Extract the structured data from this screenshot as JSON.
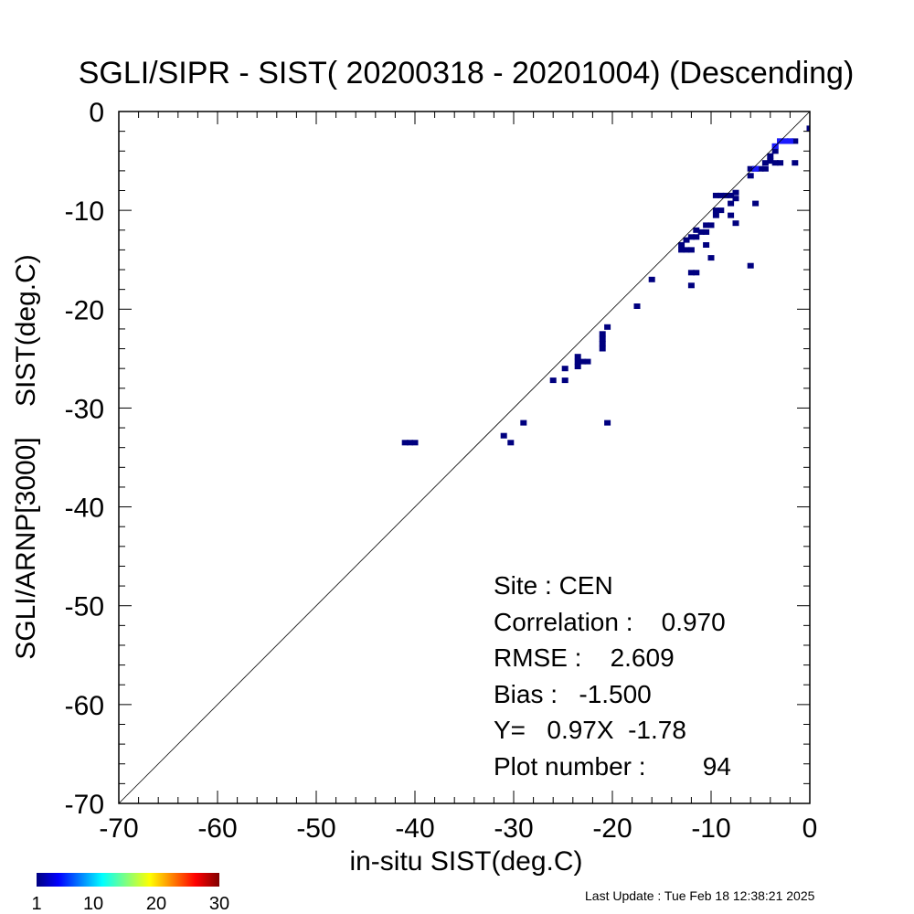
{
  "chart_data": {
    "type": "heatmap",
    "title": "SGLI/SIPR - SIST( 20200318 - 20201004) (Descending)",
    "xlabel": "in-situ SIST(deg.C)",
    "ylabel": "SGLI/ARNP[3000]    SIST(deg.C)",
    "xlim": [
      -70,
      0
    ],
    "ylim": [
      -70,
      0
    ],
    "xticks": [
      "-70",
      "-60",
      "-50",
      "-40",
      "-30",
      "-20",
      "-10",
      "0"
    ],
    "yticks": [
      "0",
      "-10",
      "-20",
      "-30",
      "-40",
      "-50",
      "-60",
      "-70"
    ],
    "reference_line": "y = x",
    "point_color": "#00007f",
    "point_color_light": "#1a1aff",
    "cells": [
      [
        -41.0,
        -33.5
      ],
      [
        -40.5,
        -33.5
      ],
      [
        -40.0,
        -33.5
      ],
      [
        -31.0,
        -32.8
      ],
      [
        -30.3,
        -33.5
      ],
      [
        -29.0,
        -31.5
      ],
      [
        -26.0,
        -27.2
      ],
      [
        -24.8,
        -27.2
      ],
      [
        -24.8,
        -26.0
      ],
      [
        -23.5,
        -24.8
      ],
      [
        -23.5,
        -25.3
      ],
      [
        -23.5,
        -25.8
      ],
      [
        -23.0,
        -25.3
      ],
      [
        -22.5,
        -25.3
      ],
      [
        -21.0,
        -22.5
      ],
      [
        -21.0,
        -23.0
      ],
      [
        -21.0,
        -23.5
      ],
      [
        -21.0,
        -24.0
      ],
      [
        -20.5,
        -21.8
      ],
      [
        -20.5,
        -31.5
      ],
      [
        -17.5,
        -19.7
      ],
      [
        -16.0,
        -17.0
      ],
      [
        -13.0,
        -13.5
      ],
      [
        -13.0,
        -14.0
      ],
      [
        -12.5,
        -14.0
      ],
      [
        -12.0,
        -14.0
      ],
      [
        -12.5,
        -13.0
      ],
      [
        -12.0,
        -12.7
      ],
      [
        -11.5,
        -12.7
      ],
      [
        -11.5,
        -12.0
      ],
      [
        -11.0,
        -12.2
      ],
      [
        -10.5,
        -11.5
      ],
      [
        -10.0,
        -11.5
      ],
      [
        -10.5,
        -12.2
      ],
      [
        -12.0,
        -16.3
      ],
      [
        -11.5,
        -16.3
      ],
      [
        -12.0,
        -17.6
      ],
      [
        -10.0,
        -14.8
      ],
      [
        -10.5,
        -13.5
      ],
      [
        -9.5,
        -10.5
      ],
      [
        -9.0,
        -10.0
      ],
      [
        -9.5,
        -10.0
      ],
      [
        -9.5,
        -8.5
      ],
      [
        -9.0,
        -8.5
      ],
      [
        -8.5,
        -8.5
      ],
      [
        -8.0,
        -8.5
      ],
      [
        -8.0,
        -9.3
      ],
      [
        -7.5,
        -8.8
      ],
      [
        -7.5,
        -8.2
      ],
      [
        -8.0,
        -10.5
      ],
      [
        -7.5,
        -11.3
      ],
      [
        -6.0,
        -15.6
      ],
      [
        -5.5,
        -9.3
      ],
      [
        -6.0,
        -6.5
      ],
      [
        -6.0,
        -5.8
      ],
      [
        -5.5,
        -5.8
      ],
      [
        -5.0,
        -5.8
      ],
      [
        -4.5,
        -5.8
      ],
      [
        -4.5,
        -5.2
      ],
      [
        -4.0,
        -5.0
      ],
      [
        -4.0,
        -4.5
      ],
      [
        -3.5,
        -4.0
      ],
      [
        -3.5,
        -5.2
      ],
      [
        -3.0,
        -5.2
      ],
      [
        -3.5,
        -3.5
      ],
      [
        -3.0,
        -3.0
      ],
      [
        -2.5,
        -3.0
      ],
      [
        -2.0,
        -3.0
      ],
      [
        -1.5,
        -3.0
      ],
      [
        -1.5,
        -5.2
      ],
      [
        0.0,
        -1.7
      ]
    ],
    "cells_light": [
      [
        -3.0,
        -3.0
      ],
      [
        -2.5,
        -3.0
      ],
      [
        -2.0,
        -3.0
      ],
      [
        -3.5,
        -3.5
      ],
      [
        -5.5,
        -5.8
      ]
    ],
    "stats": [
      "Site : CEN",
      "Correlation :    0.970",
      "RMSE :    2.609",
      "Bias :   -1.500",
      "Y=   0.97X  -1.78",
      "Plot number :        94"
    ],
    "colorbar": {
      "ticks": [
        "1",
        "10",
        "20",
        "30"
      ],
      "range": [
        1,
        30
      ],
      "colormap": "jet"
    }
  },
  "footer": {
    "last_update": "Last Update : Tue Feb 18 12:38:21 2025"
  }
}
